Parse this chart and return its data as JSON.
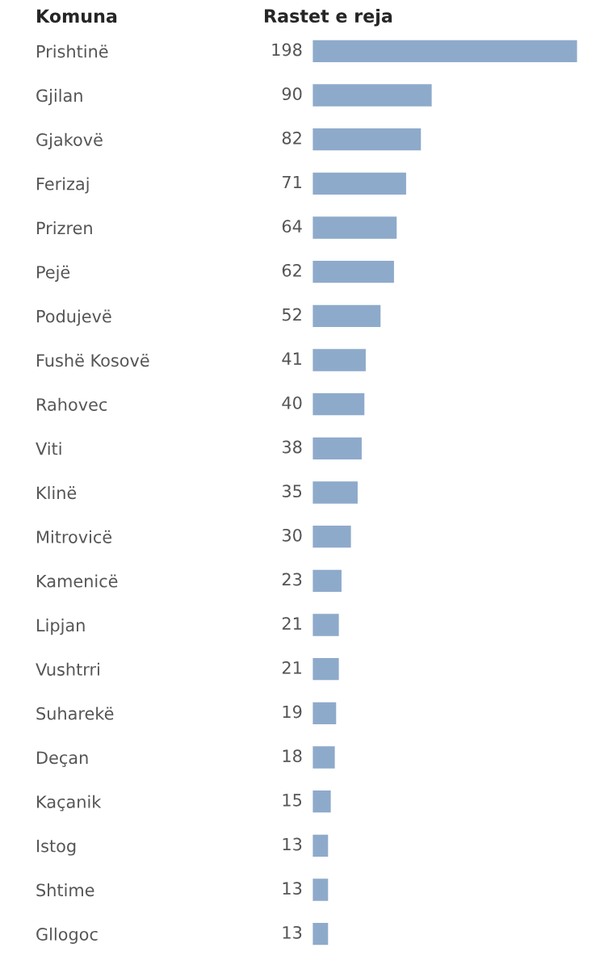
{
  "chart_data": {
    "type": "bar",
    "orientation": "horizontal",
    "xlabel": "Rastet e reja",
    "ylabel": "Komuna",
    "categories": [
      "Prishtinë",
      "Gjilan",
      "Gjakovë",
      "Ferizaj",
      "Prizren",
      "Pejë",
      "Podujevë",
      "Fushë Kosovë",
      "Rahovec",
      "Viti",
      "Klinë",
      "Mitrovicë",
      "Kamenicë",
      "Lipjan",
      "Vushtrri",
      "Suharekë",
      "Deçan",
      "Kaçanik",
      "Istog",
      "Shtime",
      "Gllogoc"
    ],
    "values": [
      198,
      90,
      82,
      71,
      64,
      62,
      52,
      41,
      40,
      38,
      35,
      30,
      23,
      21,
      21,
      19,
      18,
      15,
      13,
      13,
      13
    ],
    "color": "#8eaacb",
    "data_labels": true,
    "grid": false,
    "legend": false
  }
}
